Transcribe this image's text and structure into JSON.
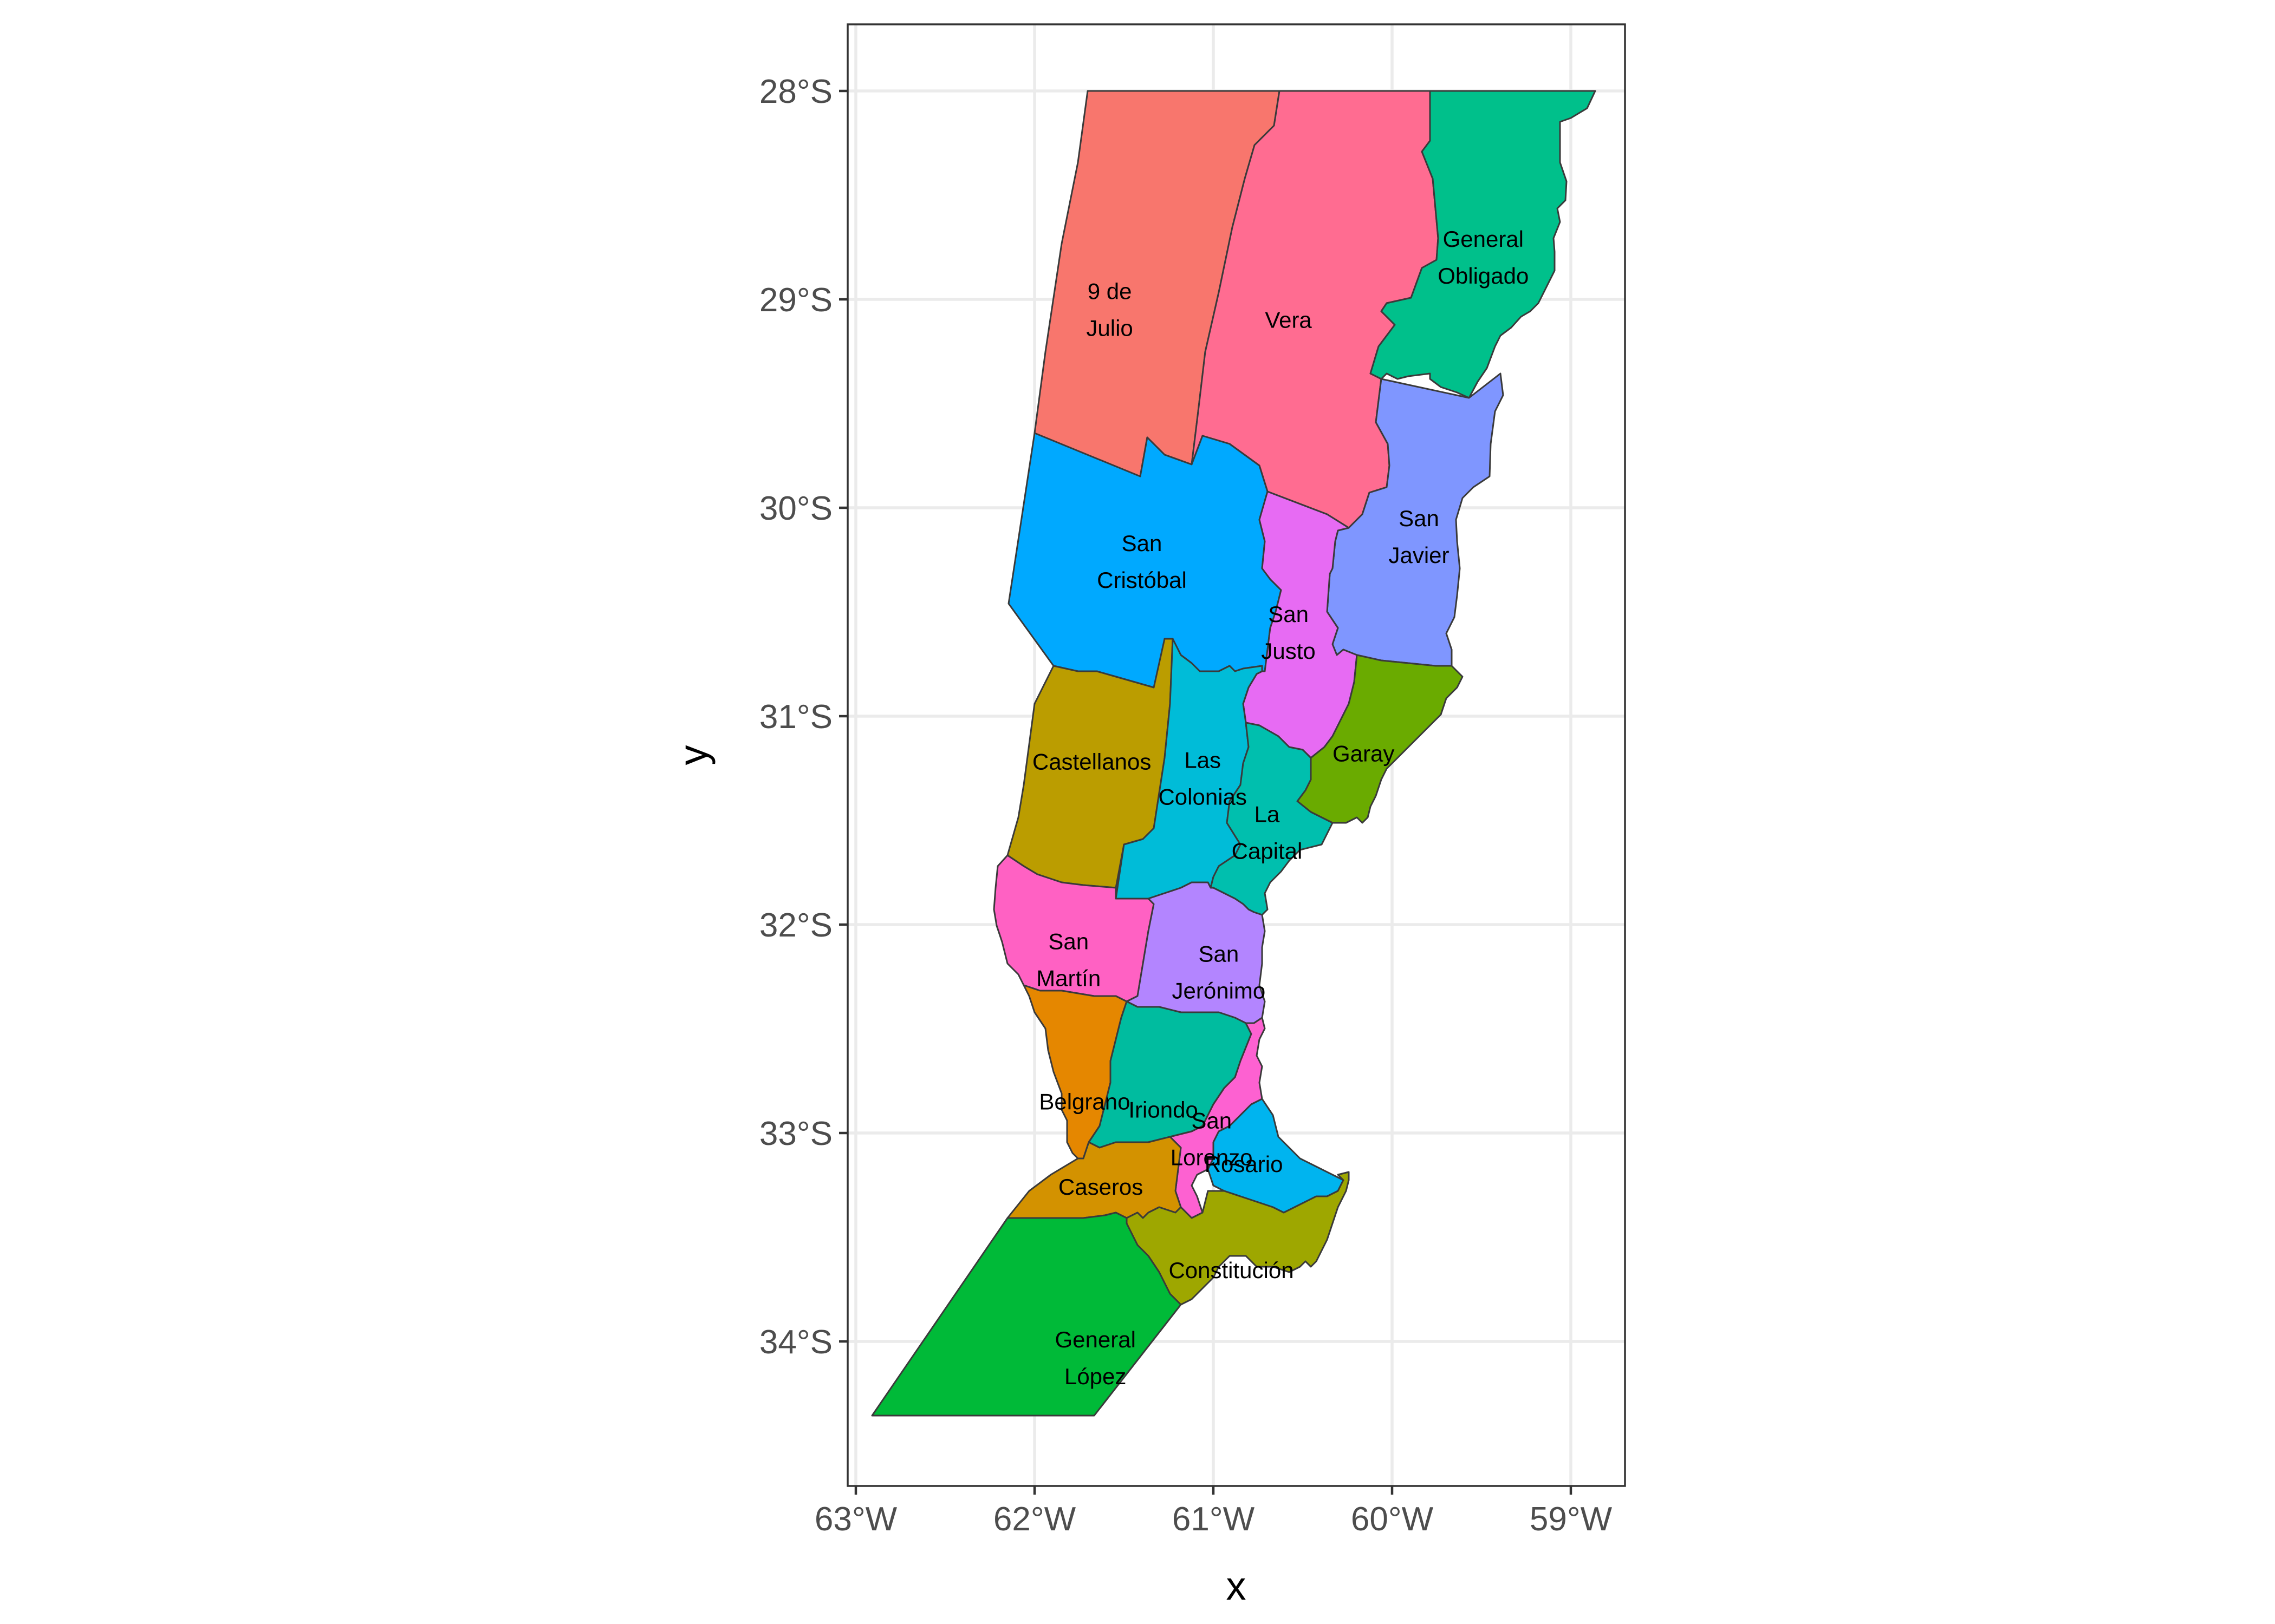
{
  "map": {
    "x_axis_title": "x",
    "y_axis_title": "y",
    "x_ticks": [
      "63°W",
      "62°W",
      "61°W",
      "60°W",
      "59°W"
    ],
    "y_ticks": [
      "28°S",
      "29°S",
      "30°S",
      "31°S",
      "32°S",
      "33°S",
      "34°S"
    ],
    "lon_range": [
      -63.0,
      -58.85
    ],
    "lat_range": [
      -34.65,
      -27.7
    ],
    "colors": {
      "nueve_de_julio": "#F8766D",
      "vera": "#FF6C91",
      "general_obligado": "#00C08B",
      "san_cristobal": "#00A9FF",
      "san_javier": "#7F96FF",
      "san_justo": "#E76BF3",
      "castellanos": "#BB9D00",
      "las_colonias": "#00BCD8",
      "garay": "#6AAB00",
      "la_capital": "#00BFAE",
      "san_martin": "#FF61C3",
      "san_jeronimo": "#B385FF",
      "belgrano": "#E58700",
      "iriondo": "#00BC9F",
      "san_lorenzo": "#FD61D1",
      "rosario": "#00B4EF",
      "caseros": "#D39200",
      "constitucion": "#9EA700",
      "general_lopez": "#00BA38"
    },
    "districts": [
      {
        "id": "nueve_de_julio",
        "label": [
          "9 de",
          "Julio"
        ],
        "label_lonlat": [
          -61.58,
          -29.05
        ]
      },
      {
        "id": "vera",
        "label": [
          "Vera"
        ],
        "label_lonlat": [
          -60.58,
          -29.1
        ]
      },
      {
        "id": "general_obligado",
        "label": [
          "General",
          "Obligado"
        ],
        "label_lonlat": [
          -59.49,
          -28.8
        ]
      },
      {
        "id": "san_cristobal",
        "label": [
          "San",
          "Cristóbal"
        ],
        "label_lonlat": [
          -61.4,
          -30.26
        ]
      },
      {
        "id": "san_javier",
        "label": [
          "San",
          "Javier"
        ],
        "label_lonlat": [
          -59.85,
          -30.14
        ]
      },
      {
        "id": "san_justo",
        "label": [
          "San",
          "Justo"
        ],
        "label_lonlat": [
          -60.58,
          -30.6
        ]
      },
      {
        "id": "castellanos",
        "label": [
          "Castellanos"
        ],
        "label_lonlat": [
          -61.68,
          -31.22
        ]
      },
      {
        "id": "las_colonias",
        "label": [
          "Las",
          "Colonias"
        ],
        "label_lonlat": [
          -61.06,
          -31.3
        ]
      },
      {
        "id": "garay",
        "label": [
          "Garay"
        ],
        "label_lonlat": [
          -60.16,
          -31.18
        ]
      },
      {
        "id": "la_capital",
        "label": [
          "La",
          "Capital"
        ],
        "label_lonlat": [
          -60.7,
          -31.56
        ]
      },
      {
        "id": "san_martin",
        "label": [
          "San",
          "Martín"
        ],
        "label_lonlat": [
          -61.81,
          -32.17
        ]
      },
      {
        "id": "san_jeronimo",
        "label": [
          "San",
          "Jerónimo"
        ],
        "label_lonlat": [
          -60.97,
          -32.23
        ]
      },
      {
        "id": "belgrano",
        "label": [
          "Belgrano"
        ],
        "label_lonlat": [
          -61.72,
          -32.85
        ]
      },
      {
        "id": "iriondo",
        "label": [
          "Iriondo"
        ],
        "label_lonlat": [
          -61.28,
          -32.89
        ]
      },
      {
        "id": "san_lorenzo",
        "label": [
          "San",
          "Lorenzo"
        ],
        "label_lonlat": [
          -61.01,
          -33.03
        ]
      },
      {
        "id": "rosario",
        "label": [
          "Rosario"
        ],
        "label_lonlat": [
          -60.83,
          -33.15
        ]
      },
      {
        "id": "caseros",
        "label": [
          "Caseros"
        ],
        "label_lonlat": [
          -61.63,
          -33.26
        ]
      },
      {
        "id": "constitucion",
        "label": [
          "Constitución"
        ],
        "label_lonlat": [
          -60.9,
          -33.66
        ]
      },
      {
        "id": "general_lopez",
        "label": [
          "General",
          "López"
        ],
        "label_lonlat": [
          -61.66,
          -34.08
        ]
      }
    ]
  }
}
